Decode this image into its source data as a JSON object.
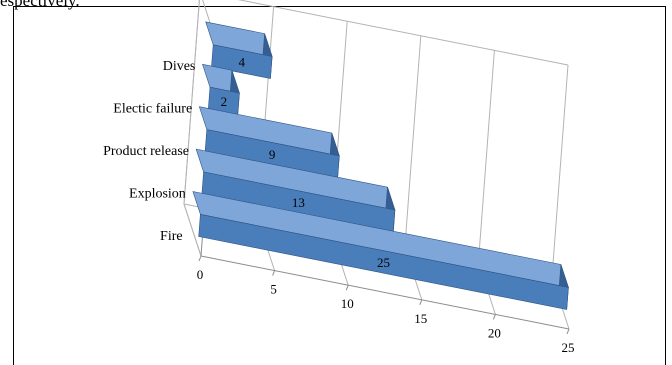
{
  "header_text": "espectively.",
  "colors": {
    "bar_front": "#4a7ebb",
    "bar_top": "#7ea6d8",
    "bar_end": "#355f93",
    "bar_edge": "#2f5485",
    "grid": "#b3b3b3",
    "frame": "#000000"
  },
  "chart_data": {
    "type": "bar",
    "orientation": "horizontal",
    "style": "3d",
    "categories": [
      "Dives",
      "Electic failure",
      "Product release",
      "Explosion",
      "Fire"
    ],
    "values": [
      4,
      2,
      9,
      13,
      25
    ],
    "data_labels": [
      "4",
      "2",
      "9",
      "13",
      "25"
    ],
    "x_ticks": [
      "0",
      "5",
      "10",
      "15",
      "20",
      "25"
    ],
    "xlim": [
      0,
      25
    ],
    "grid": true,
    "legend": false,
    "title": "",
    "xlabel": "",
    "ylabel": ""
  }
}
